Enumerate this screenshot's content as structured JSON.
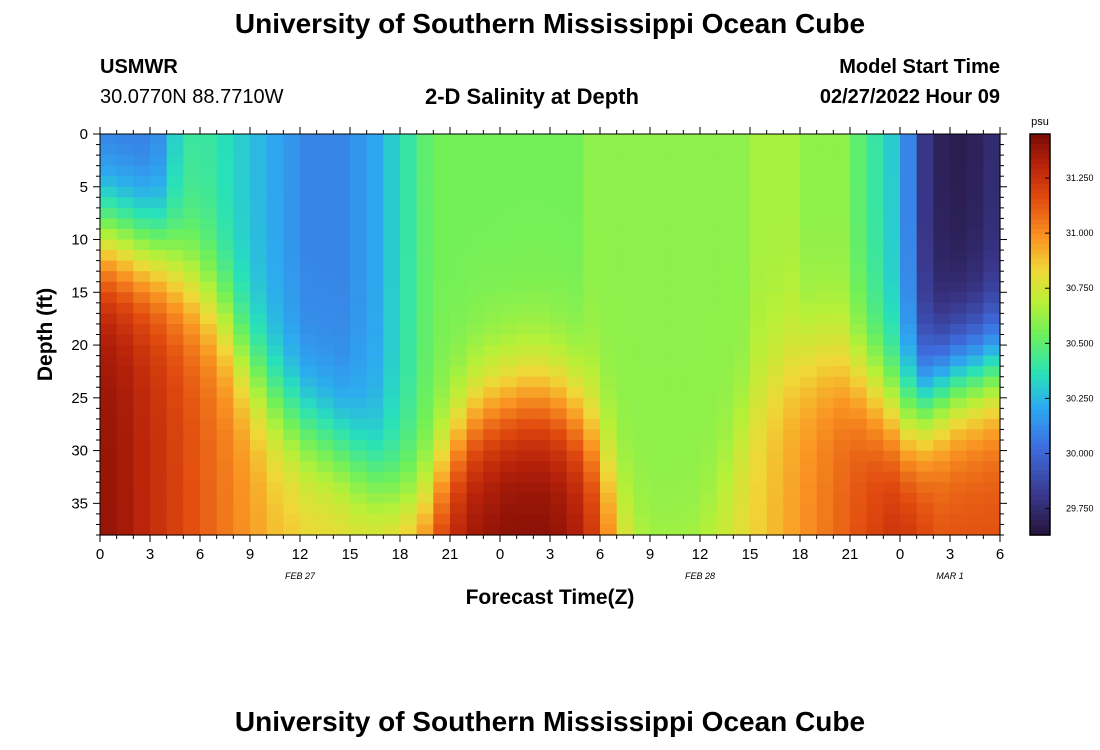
{
  "header": {
    "title": "University of Southern Mississippi Ocean Cube",
    "station": "USMWR",
    "coordinates": "30.0770N  88.7710W",
    "subtitle": "2-D Salinity at Depth",
    "model_start_label": "Model Start Time",
    "model_start_value": "02/27/2022 Hour 09"
  },
  "footer": {
    "title": "University of Southern Mississippi Ocean Cube"
  },
  "chart_data": {
    "type": "heatmap",
    "title": "2-D Salinity at Depth",
    "xlabel": "Forecast Time(Z)",
    "ylabel": "Depth (ft)",
    "x_ticks": [
      "0",
      "3",
      "6",
      "9",
      "12",
      "15",
      "18",
      "21",
      "0",
      "3",
      "6",
      "9",
      "12",
      "15",
      "18",
      "21",
      "0",
      "3",
      "6"
    ],
    "x_range_hours": [
      0,
      54
    ],
    "date_labels": [
      {
        "label": "FEB 27",
        "hour": 12
      },
      {
        "label": "FEB 28",
        "hour": 36
      },
      {
        "label": "MAR 1",
        "hour": 51
      }
    ],
    "y_ticks": [
      0,
      5,
      10,
      15,
      20,
      25,
      30,
      35
    ],
    "y_range": [
      0,
      38
    ],
    "colorbar": {
      "unit": "psu",
      "ticks": [
        "29.750",
        "30.000",
        "30.250",
        "30.500",
        "30.750",
        "31.000",
        "31.250"
      ],
      "range": [
        29.63,
        31.45
      ]
    },
    "grid": {
      "cols": 54,
      "rows": 38,
      "hours": [
        0,
        1,
        2,
        3,
        4,
        5,
        6,
        7,
        8,
        9,
        10,
        11,
        12,
        13,
        14,
        15,
        16,
        17,
        18,
        19,
        20,
        21,
        22,
        23,
        24,
        25,
        26,
        27,
        28,
        29,
        30,
        31,
        32,
        33,
        34,
        35,
        36,
        37,
        38,
        39,
        40,
        41,
        42,
        43,
        44,
        45,
        46,
        47,
        48,
        49,
        50,
        51,
        52,
        53
      ],
      "depths": [
        0,
        1,
        2,
        3,
        4,
        5,
        6,
        7,
        8,
        9,
        10,
        11,
        12,
        13,
        14,
        15,
        16,
        17,
        18,
        19,
        20,
        21,
        22,
        23,
        24,
        25,
        26,
        27,
        28,
        29,
        30,
        31,
        32,
        33,
        34,
        35,
        36,
        37
      ],
      "surface_salinity_psu": [
        30.05,
        30.05,
        30.05,
        30.1,
        30.3,
        30.4,
        30.4,
        30.35,
        30.3,
        30.25,
        30.2,
        30.15,
        30.1,
        30.1,
        30.1,
        30.15,
        30.2,
        30.3,
        30.4,
        30.5,
        30.55,
        30.55,
        30.55,
        30.55,
        30.55,
        30.55,
        30.55,
        30.55,
        30.55,
        30.6,
        30.6,
        30.6,
        30.6,
        30.6,
        30.6,
        30.6,
        30.6,
        30.6,
        30.6,
        30.65,
        30.65,
        30.65,
        30.6,
        30.6,
        30.6,
        30.5,
        30.4,
        30.3,
        30.1,
        29.8,
        29.7,
        29.68,
        29.7,
        29.75
      ],
      "halocline_depth_ft": [
        10.0,
        10.5,
        11.0,
        11.5,
        13.0,
        14.5,
        16.0,
        18.0,
        21.0,
        23.5,
        25.5,
        27.0,
        28.0,
        29.0,
        30.0,
        31.5,
        33.0,
        34.5,
        35.5,
        35.0,
        32.0,
        29.0,
        27.0,
        26.0,
        25.5,
        25.0,
        25.0,
        25.5,
        26.5,
        28.5,
        32.0,
        36.0,
        39.0,
        40.0,
        40.0,
        39.0,
        36.0,
        32.0,
        28.0,
        25.0,
        23.0,
        22.0,
        21.5,
        21.5,
        22.0,
        23.0,
        24.5,
        26.0,
        27.0,
        26.0,
        24.5,
        23.5,
        23.0,
        22.5
      ],
      "bottom_salinity_psu": [
        31.38,
        31.35,
        31.3,
        31.25,
        31.2,
        31.15,
        31.1,
        31.05,
        31.0,
        30.95,
        30.9,
        30.88,
        30.85,
        30.85,
        30.85,
        30.85,
        30.88,
        30.95,
        31.05,
        31.15,
        31.25,
        31.33,
        31.38,
        31.4,
        31.42,
        31.42,
        31.42,
        31.4,
        31.35,
        31.25,
        31.05,
        30.85,
        30.75,
        30.7,
        30.7,
        30.7,
        30.72,
        30.75,
        30.8,
        30.85,
        30.9,
        30.95,
        31.0,
        31.05,
        31.1,
        31.15,
        31.2,
        31.25,
        31.25,
        31.2,
        31.15,
        31.15,
        31.15,
        31.15
      ]
    }
  }
}
